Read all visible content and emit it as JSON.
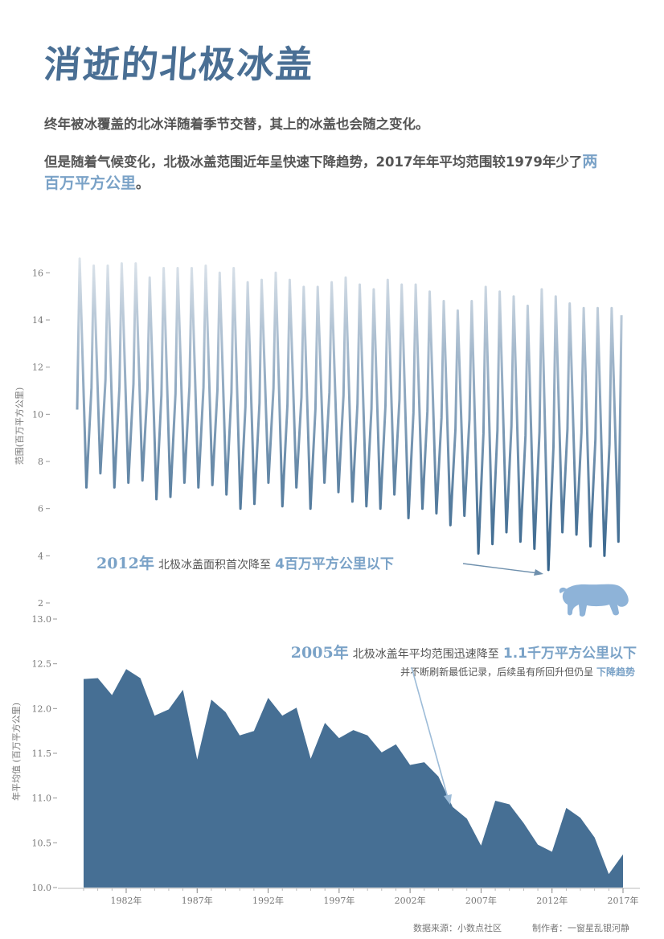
{
  "title": "消逝的北极冰盖",
  "intro": {
    "line1": "终年被冰覆盖的北冰洋随着季节交替，其上的冰盖也会随之变化。",
    "line2_a": "但是随着气候变化，北极冰盖范围近年呈快速下降趋势，2017年年平均范围较1979年少了",
    "line2_highlight": "两百万平方公里",
    "line2_end": "。"
  },
  "annotations": {
    "a2012_year": "2012年",
    "a2012_mid": "北极冰盖面积首次降至",
    "a2012_hl": "4百万平方公里以下",
    "a2005_year": "2005年",
    "a2005_mid": "北极冰盖年平均范围迅速降至",
    "a2005_hl": "1.1千万平方公里以下",
    "a2005_line2": "并不断刷新最低记录，后续虽有所回升但仍呈",
    "a2005_line2_hl": "下降趋势"
  },
  "footer": {
    "source": "数据来源：小数点社区",
    "author": "制作者：一窗星乱银河静"
  },
  "colors": {
    "title": "#4a6f94",
    "highlight": "#7aa2c7",
    "area": "#466f94",
    "line_top": "#dde4ea",
    "line_bottom": "#3d6a92",
    "bear": "#8eb3d8"
  },
  "chart_data": [
    {
      "type": "line",
      "ylabel": "范围(百万平方公里)",
      "ylim": [
        2,
        17
      ],
      "yticks": [
        2,
        4,
        6,
        8,
        10,
        12,
        14,
        16
      ],
      "x_start_year": 1979,
      "first_value": 10.2,
      "years": [
        1979,
        1980,
        1981,
        1982,
        1983,
        1984,
        1985,
        1986,
        1987,
        1988,
        1989,
        1990,
        1991,
        1992,
        1993,
        1994,
        1995,
        1996,
        1997,
        1998,
        1999,
        2000,
        2001,
        2002,
        2003,
        2004,
        2005,
        2006,
        2007,
        2008,
        2009,
        2010,
        2011,
        2012,
        2013,
        2014,
        2015,
        2016,
        2017
      ],
      "annual_max": [
        16.6,
        16.3,
        16.3,
        16.4,
        16.4,
        15.8,
        16.2,
        16.2,
        16.2,
        16.3,
        16.0,
        16.2,
        15.6,
        15.7,
        16.0,
        15.7,
        15.4,
        15.4,
        15.6,
        15.8,
        15.5,
        15.3,
        15.7,
        15.5,
        15.5,
        15.2,
        14.8,
        14.4,
        14.8,
        15.4,
        15.2,
        15.0,
        14.6,
        15.3,
        15.0,
        14.7,
        14.5,
        14.5,
        14.5
      ],
      "annual_min": [
        6.9,
        7.5,
        6.9,
        7.1,
        7.2,
        6.4,
        6.5,
        7.1,
        6.9,
        7.0,
        6.6,
        6.0,
        6.2,
        7.1,
        6.1,
        6.9,
        6.0,
        7.1,
        6.7,
        6.3,
        6.1,
        6.0,
        6.6,
        5.6,
        6.0,
        5.8,
        5.3,
        5.7,
        4.1,
        4.5,
        5.0,
        4.6,
        4.3,
        3.4,
        5.0,
        4.9,
        4.4,
        4.0,
        4.6
      ]
    },
    {
      "type": "area",
      "ylabel": "年平均值 (百万平方公里)",
      "ylim": [
        10.0,
        13.0
      ],
      "yticks": [
        "10.0",
        "10.5",
        "11.0",
        "11.5",
        "12.0",
        "12.5",
        "13.0"
      ],
      "xticks": [
        "1982年",
        "1987年",
        "1992年",
        "1997年",
        "2002年",
        "2007年",
        "2012年",
        "2017年"
      ],
      "x": [
        1979,
        1980,
        1981,
        1982,
        1983,
        1984,
        1985,
        1986,
        1987,
        1988,
        1989,
        1990,
        1991,
        1992,
        1993,
        1994,
        1995,
        1996,
        1997,
        1998,
        1999,
        2000,
        2001,
        2002,
        2003,
        2004,
        2005,
        2006,
        2007,
        2008,
        2009,
        2010,
        2011,
        2012,
        2013,
        2014,
        2015,
        2016,
        2017
      ],
      "values": [
        12.33,
        12.34,
        12.15,
        12.44,
        12.34,
        11.92,
        11.99,
        12.21,
        11.43,
        12.1,
        11.96,
        11.7,
        11.75,
        12.12,
        11.92,
        12.01,
        11.44,
        11.84,
        11.67,
        11.76,
        11.7,
        11.51,
        11.6,
        11.37,
        11.4,
        11.24,
        10.9,
        10.77,
        10.47,
        10.97,
        10.93,
        10.72,
        10.48,
        10.4,
        10.89,
        10.78,
        10.56,
        10.15,
        10.37
      ]
    }
  ]
}
